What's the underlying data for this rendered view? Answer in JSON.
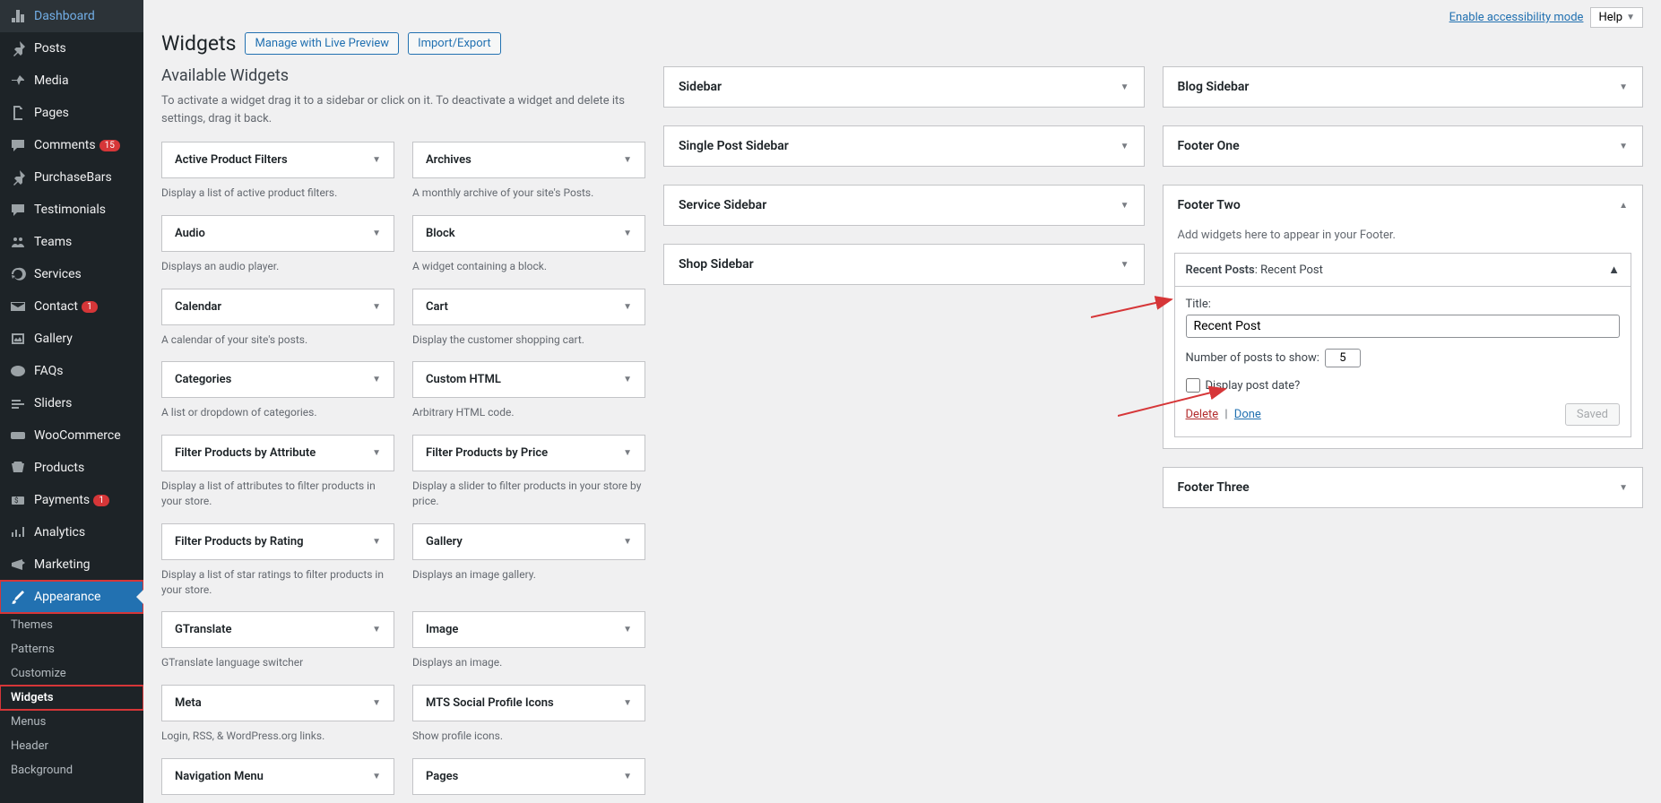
{
  "topbar": {
    "accessibility_link": "Enable accessibility mode",
    "help_label": "Help"
  },
  "header": {
    "title": "Widgets",
    "live_preview_btn": "Manage with Live Preview",
    "import_export_btn": "Import/Export"
  },
  "sidebar_menu": [
    {
      "icon": "dashboard",
      "label": "Dashboard"
    },
    {
      "icon": "pin",
      "label": "Posts"
    },
    {
      "icon": "media",
      "label": "Media"
    },
    {
      "icon": "page",
      "label": "Pages"
    },
    {
      "icon": "comment",
      "label": "Comments",
      "badge": "15"
    },
    {
      "icon": "pin",
      "label": "PurchaseBars"
    },
    {
      "icon": "testimonials",
      "label": "Testimonials"
    },
    {
      "icon": "teams",
      "label": "Teams"
    },
    {
      "icon": "refresh",
      "label": "Services"
    },
    {
      "icon": "mail",
      "label": "Contact",
      "badge": "1"
    },
    {
      "icon": "gallery",
      "label": "Gallery"
    },
    {
      "icon": "faq",
      "label": "FAQs"
    },
    {
      "icon": "sliders",
      "label": "Sliders"
    },
    {
      "icon": "woo",
      "label": "WooCommerce"
    },
    {
      "icon": "products",
      "label": "Products"
    },
    {
      "icon": "payments",
      "label": "Payments",
      "badge": "1"
    },
    {
      "icon": "analytics",
      "label": "Analytics"
    },
    {
      "icon": "marketing",
      "label": "Marketing"
    },
    {
      "icon": "brush",
      "label": "Appearance",
      "current": true
    }
  ],
  "appearance_submenu": [
    {
      "label": "Themes"
    },
    {
      "label": "Patterns"
    },
    {
      "label": "Customize"
    },
    {
      "label": "Widgets",
      "active": true
    },
    {
      "label": "Menus"
    },
    {
      "label": "Header"
    },
    {
      "label": "Background"
    }
  ],
  "available": {
    "title": "Available Widgets",
    "desc": "To activate a widget drag it to a sidebar or click on it. To deactivate a widget and delete its settings, drag it back.",
    "widgets": [
      {
        "name": "Active Product Filters",
        "desc": "Display a list of active product filters."
      },
      {
        "name": "Archives",
        "desc": "A monthly archive of your site's Posts."
      },
      {
        "name": "Audio",
        "desc": "Displays an audio player."
      },
      {
        "name": "Block",
        "desc": "A widget containing a block."
      },
      {
        "name": "Calendar",
        "desc": "A calendar of your site's posts."
      },
      {
        "name": "Cart",
        "desc": "Display the customer shopping cart."
      },
      {
        "name": "Categories",
        "desc": "A list or dropdown of categories."
      },
      {
        "name": "Custom HTML",
        "desc": "Arbitrary HTML code."
      },
      {
        "name": "Filter Products by Attribute",
        "desc": "Display a list of attributes to filter products in your store."
      },
      {
        "name": "Filter Products by Price",
        "desc": "Display a slider to filter products in your store by price."
      },
      {
        "name": "Filter Products by Rating",
        "desc": "Display a list of star ratings to filter products in your store."
      },
      {
        "name": "Gallery",
        "desc": "Displays an image gallery."
      },
      {
        "name": "GTranslate",
        "desc": "GTranslate language switcher"
      },
      {
        "name": "Image",
        "desc": "Displays an image."
      },
      {
        "name": "Meta",
        "desc": "Login, RSS, & WordPress.org links."
      },
      {
        "name": "MTS Social Profile Icons",
        "desc": "Show profile icons."
      },
      {
        "name": "Navigation Menu",
        "desc": ""
      },
      {
        "name": "Pages",
        "desc": ""
      }
    ]
  },
  "sidebar_areas_mid": [
    {
      "title": "Sidebar"
    },
    {
      "title": "Single Post Sidebar"
    },
    {
      "title": "Service Sidebar"
    },
    {
      "title": "Shop Sidebar"
    }
  ],
  "sidebar_areas_right": [
    {
      "title": "Blog Sidebar"
    },
    {
      "title": "Footer One"
    }
  ],
  "footer_two": {
    "title": "Footer Two",
    "desc": "Add widgets here to appear in your Footer.",
    "widget": {
      "name": "Recent Posts",
      "instance_title": "Recent Post",
      "title_label": "Title:",
      "title_value": "Recent Post",
      "count_label": "Number of posts to show:",
      "count_value": "5",
      "date_label": "Display post date?",
      "delete_label": "Delete",
      "done_label": "Done",
      "saved_label": "Saved"
    }
  },
  "footer_three": {
    "title": "Footer Three"
  },
  "colors": {
    "sidebar_bg": "#1d2327",
    "accent": "#2271b1",
    "danger": "#d63638",
    "body_bg": "#f0f0f1",
    "border": "#c3c4c7"
  }
}
